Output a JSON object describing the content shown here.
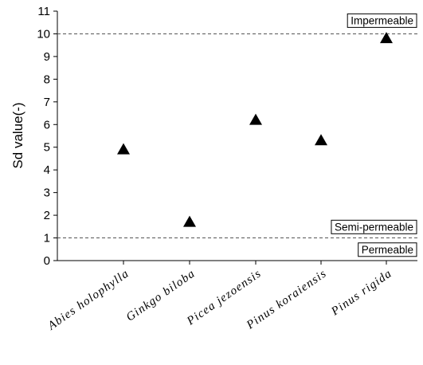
{
  "chart_data": {
    "type": "scatter",
    "title": "",
    "xlabel": "",
    "ylabel": "Sd value(-)",
    "ylim": [
      0,
      11
    ],
    "yticks": [
      0,
      1,
      2,
      3,
      4,
      5,
      6,
      7,
      8,
      9,
      10,
      11
    ],
    "categories": [
      "Abies holophylla",
      "Ginkgo biloba",
      "Picea jezoensis",
      "Pinus koraiensis",
      "Pinus rigida"
    ],
    "values": [
      4.9,
      1.7,
      6.2,
      5.3,
      9.8
    ],
    "marker": "filled-triangle",
    "marker_color": "#000000",
    "grid": false,
    "legend": "none",
    "reference_lines": [
      {
        "y": 10,
        "style": "dashed"
      },
      {
        "y": 1,
        "style": "dashed"
      }
    ],
    "annotations": [
      {
        "text": "Impermeable",
        "y": 10.6
      },
      {
        "text": "Semi-permeable",
        "y": 1.5
      },
      {
        "text": "Permeable",
        "y": 0.5
      }
    ]
  }
}
